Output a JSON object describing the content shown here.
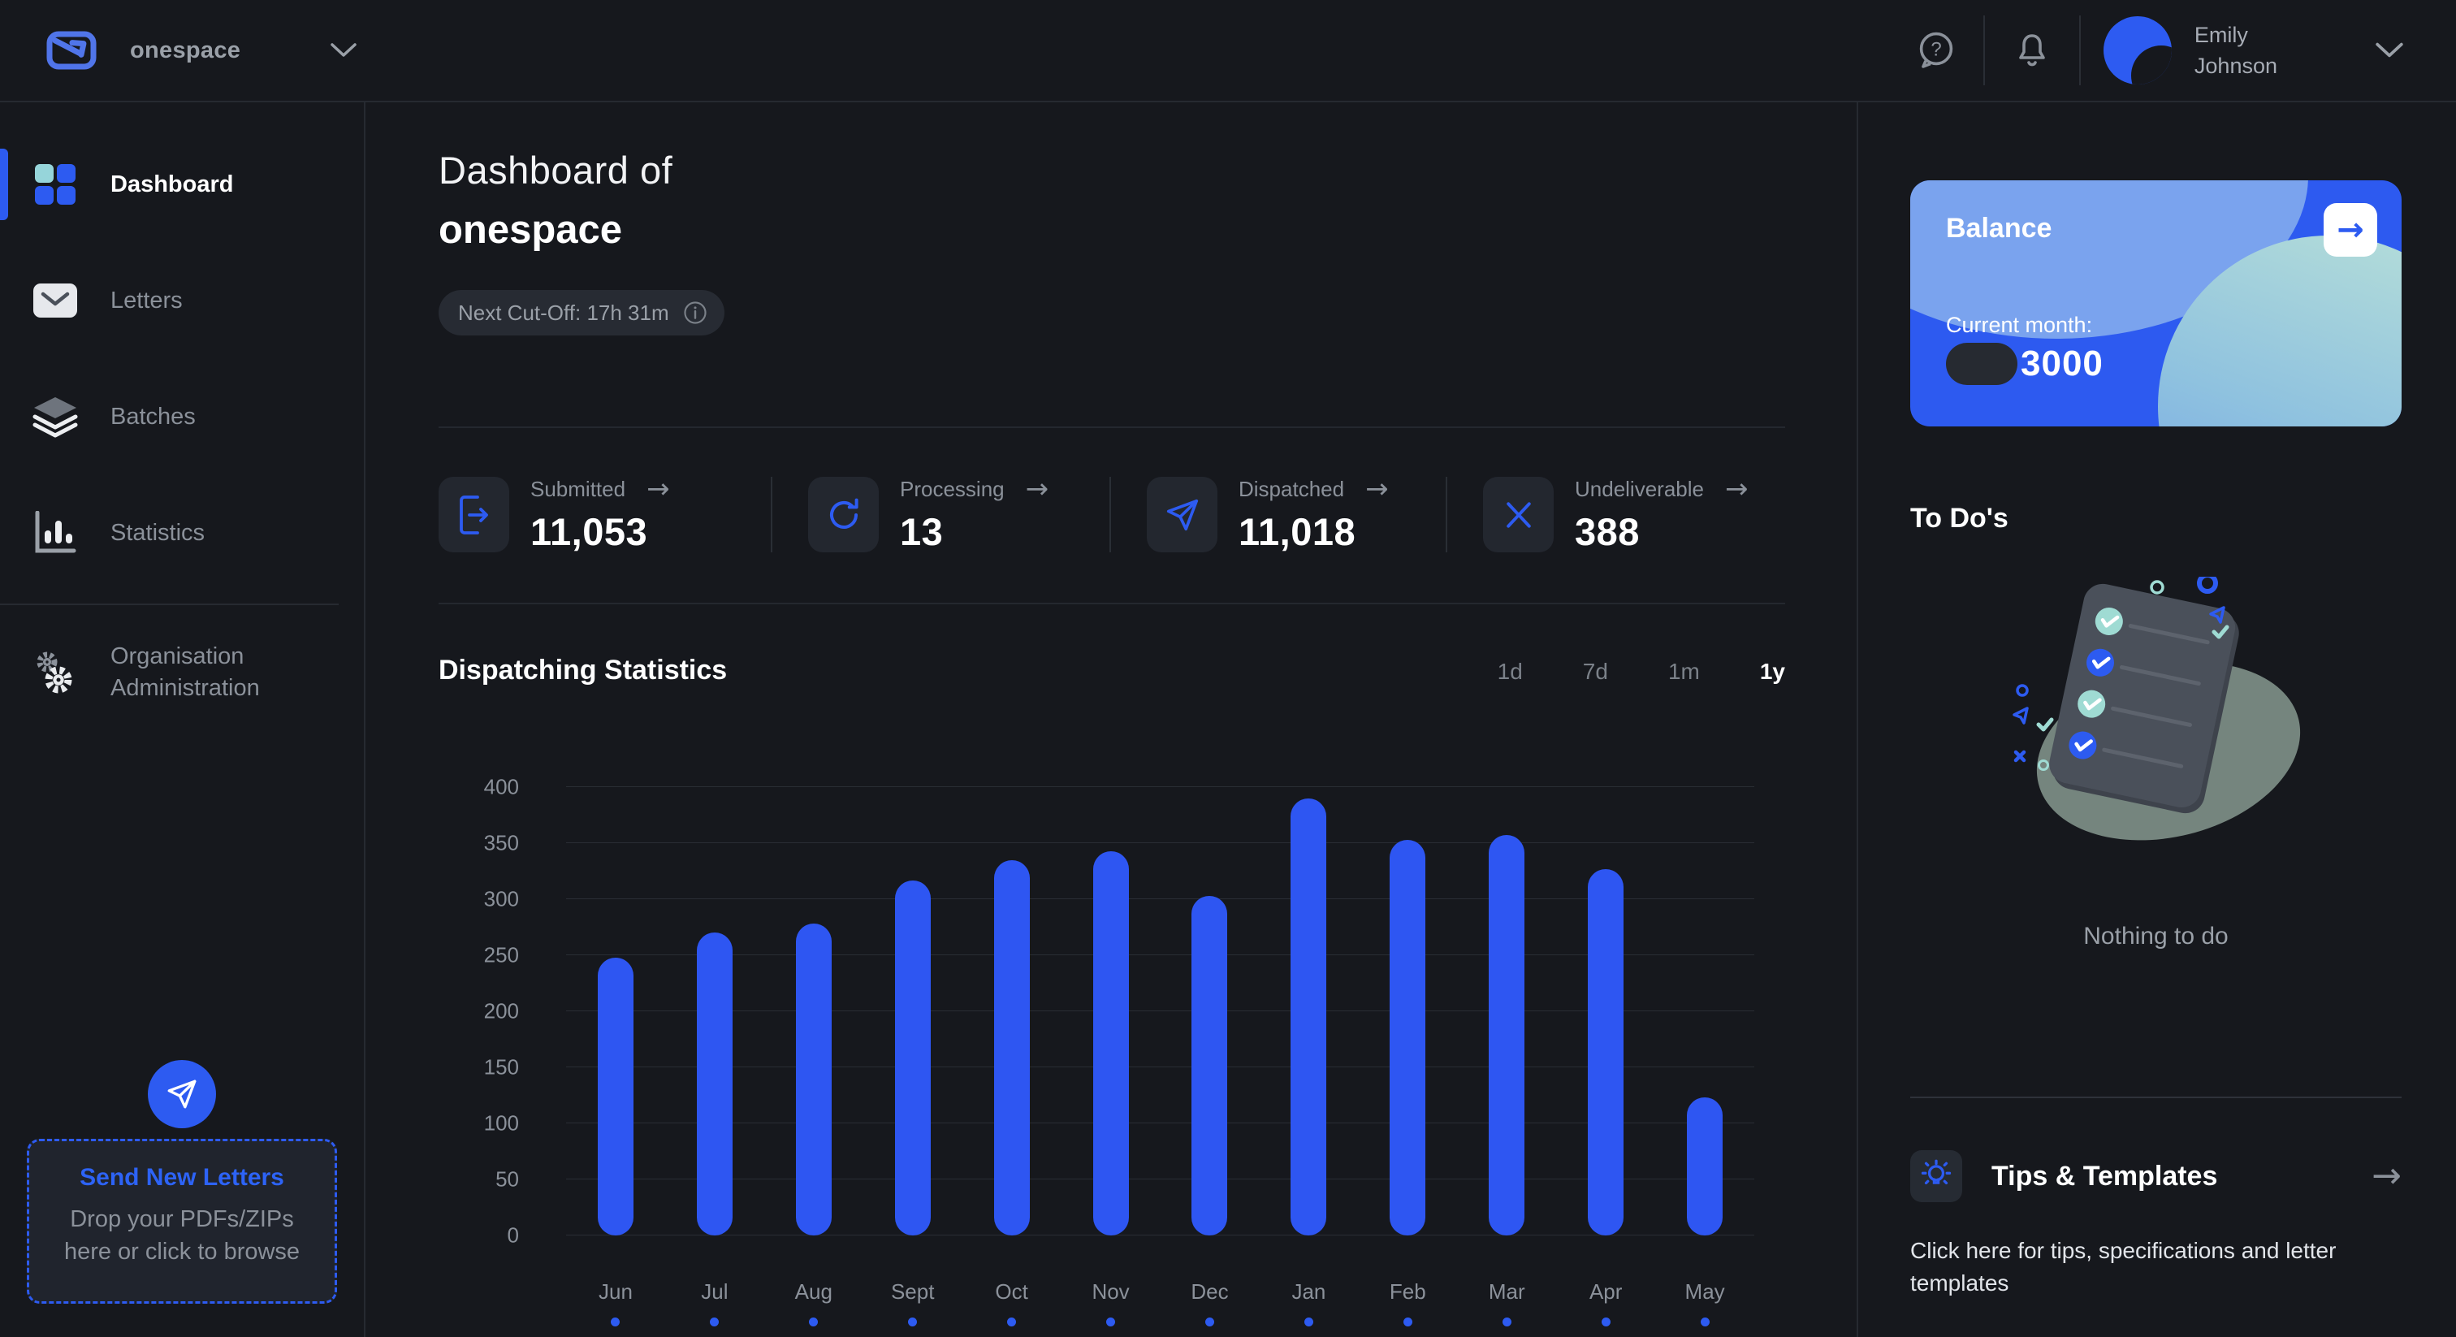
{
  "topbar": {
    "brand": "onespace",
    "user": {
      "name_line1": "Emily",
      "name_line2": "Johnson"
    }
  },
  "sidebar": {
    "items": [
      {
        "label": "Dashboard",
        "active": true
      },
      {
        "label": "Letters",
        "active": false
      },
      {
        "label": "Batches",
        "active": false
      },
      {
        "label": "Statistics",
        "active": false
      }
    ],
    "admin_label": "Organisation Administration",
    "dropzone": {
      "title": "Send New Letters",
      "desc": "Drop your PDFs/ZIPs here or click to browse"
    }
  },
  "header": {
    "title_line1": "Dashboard of",
    "title_line2": "onespace",
    "cutoff": "Next Cut-Off: 17h 31m"
  },
  "stats": [
    {
      "label": "Submitted",
      "value": "11,053",
      "arrow": "→"
    },
    {
      "label": "Processing",
      "value": "13",
      "arrow": "→"
    },
    {
      "label": "Dispatched",
      "value": "11,018",
      "arrow": "→"
    },
    {
      "label": "Undeliverable",
      "value": "388",
      "arrow": "→"
    }
  ],
  "chart": {
    "title": "Dispatching Statistics",
    "ranges": [
      "1d",
      "7d",
      "1m",
      "1y"
    ],
    "active_range": "1y"
  },
  "chart_data": {
    "type": "bar",
    "title": "Dispatching Statistics",
    "categories": [
      "Jun",
      "Jul",
      "Aug",
      "Sept",
      "Oct",
      "Nov",
      "Dec",
      "Jan",
      "Feb",
      "Mar",
      "Apr",
      "May"
    ],
    "values": [
      248,
      270,
      278,
      317,
      335,
      343,
      303,
      390,
      353,
      357,
      327,
      123
    ],
    "xlabel": "",
    "ylabel": "",
    "ylim": [
      0,
      400
    ],
    "ytick_step": 50,
    "grid": true,
    "bar_color": "#2e56f2",
    "legend_position": "none"
  },
  "right_panel": {
    "balance": {
      "title": "Balance",
      "month_label": "Current month:",
      "amount": "3000",
      "arrow": "→"
    },
    "todos": {
      "title": "To Do's",
      "empty": "Nothing to do"
    },
    "tips": {
      "title": "Tips & Templates",
      "desc": "Click here for tips, specifications and letter templates",
      "arrow": "→"
    }
  },
  "colors": {
    "background": "#16181d",
    "accent_blue": "#2d5bf1",
    "bar_blue": "#2e56f2",
    "teal": "#96d5da",
    "card_blue": "#2d5af0",
    "muted_text": "#8b919a",
    "divider": "#262a31",
    "tile_bg": "#23272f"
  }
}
